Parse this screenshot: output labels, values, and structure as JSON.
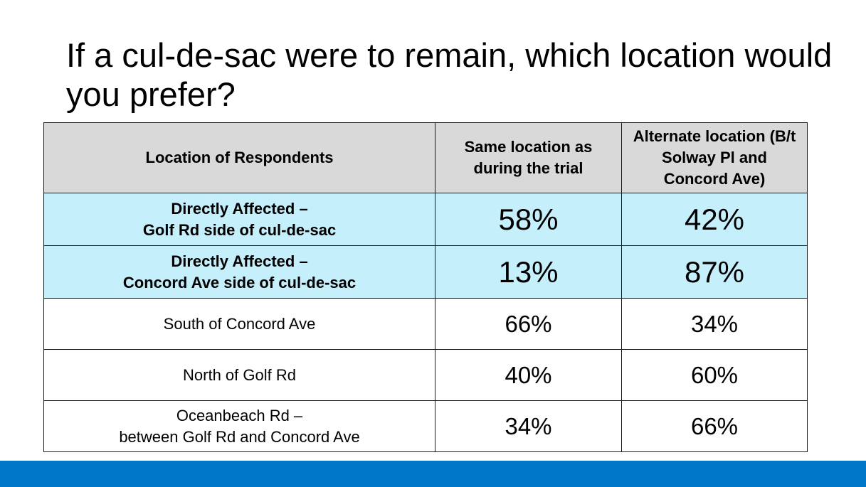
{
  "title": "If a cul-de-sac were to remain, which location would you prefer?",
  "table": {
    "headers": {
      "location": "Location of Respondents",
      "same": "Same location as during the trial",
      "alternate": "Alternate location (B/t Solway Pl and Concord Ave)"
    },
    "rows": [
      {
        "location_line1": "Directly Affected –",
        "location_line2": "Golf Rd side of cul-de-sac",
        "same": "58%",
        "alternate": "42%",
        "highlight": true
      },
      {
        "location_line1": "Directly Affected –",
        "location_line2": "Concord Ave side of cul-de-sac",
        "same": "13%",
        "alternate": "87%",
        "highlight": true
      },
      {
        "location_line1": "South of Concord Ave",
        "location_line2": "",
        "same": "66%",
        "alternate": "34%",
        "highlight": false
      },
      {
        "location_line1": "North of Golf Rd",
        "location_line2": "",
        "same": "40%",
        "alternate": "60%",
        "highlight": false
      },
      {
        "location_line1": "Oceanbeach Rd –",
        "location_line2": "between Golf Rd and Concord Ave",
        "same": "34%",
        "alternate": "66%",
        "highlight": false
      }
    ]
  },
  "colors": {
    "header_background": "#d9d9d9",
    "highlight_row_background": "#c6effc",
    "footer_band": "#0077c8"
  }
}
